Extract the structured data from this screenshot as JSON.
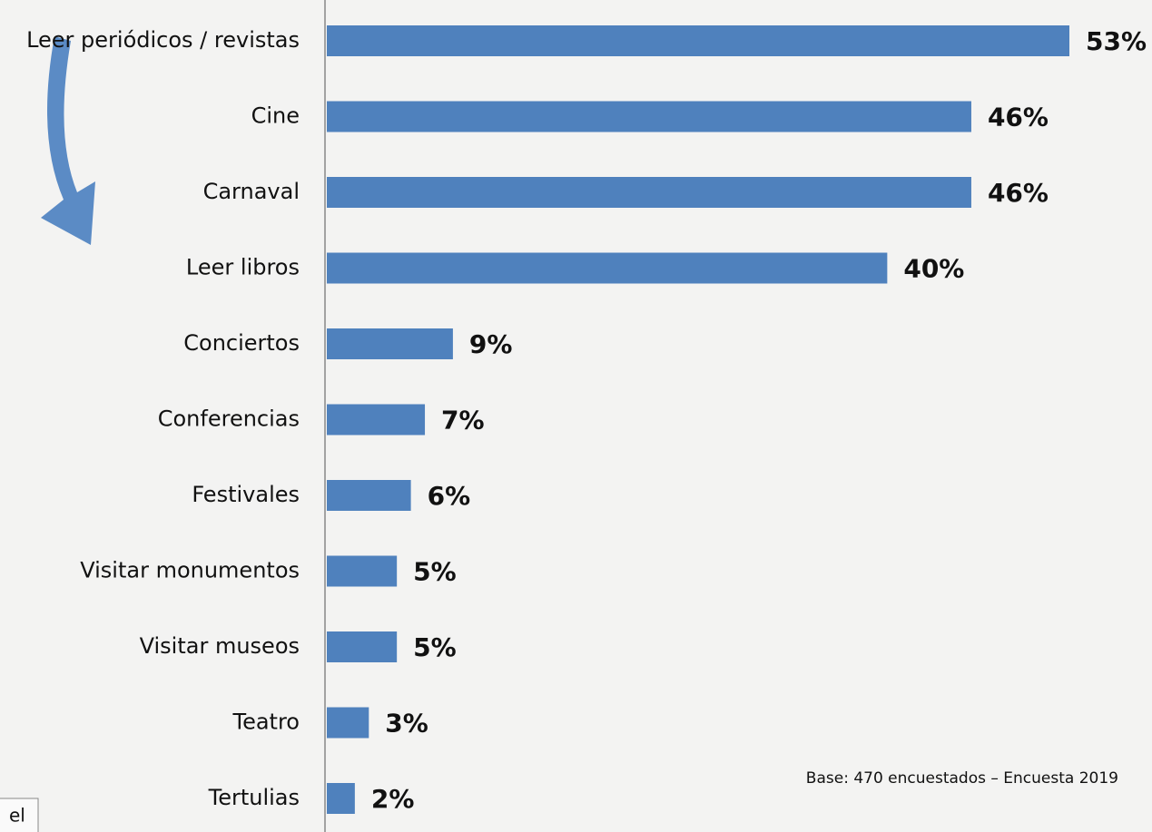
{
  "chart_data": {
    "type": "hbar",
    "categories": [
      "Leer periódicos / revistas",
      "Cine",
      "Carnaval",
      "Leer libros",
      "Conciertos",
      "Conferencias",
      "Festivales",
      "Visitar monumentos",
      "Visitar museos",
      "Teatro",
      "Tertulias"
    ],
    "values": [
      53,
      46,
      46,
      40,
      9,
      7,
      6,
      5,
      5,
      3,
      2
    ],
    "value_labels": [
      "53%",
      "46%",
      "46%",
      "40%",
      "9%",
      "7%",
      "6%",
      "5%",
      "5%",
      "3%",
      "2%"
    ],
    "color": "#4f81bd",
    "note": "Base: 470 encuestados – Encuesta 2019",
    "side_text": "el"
  }
}
